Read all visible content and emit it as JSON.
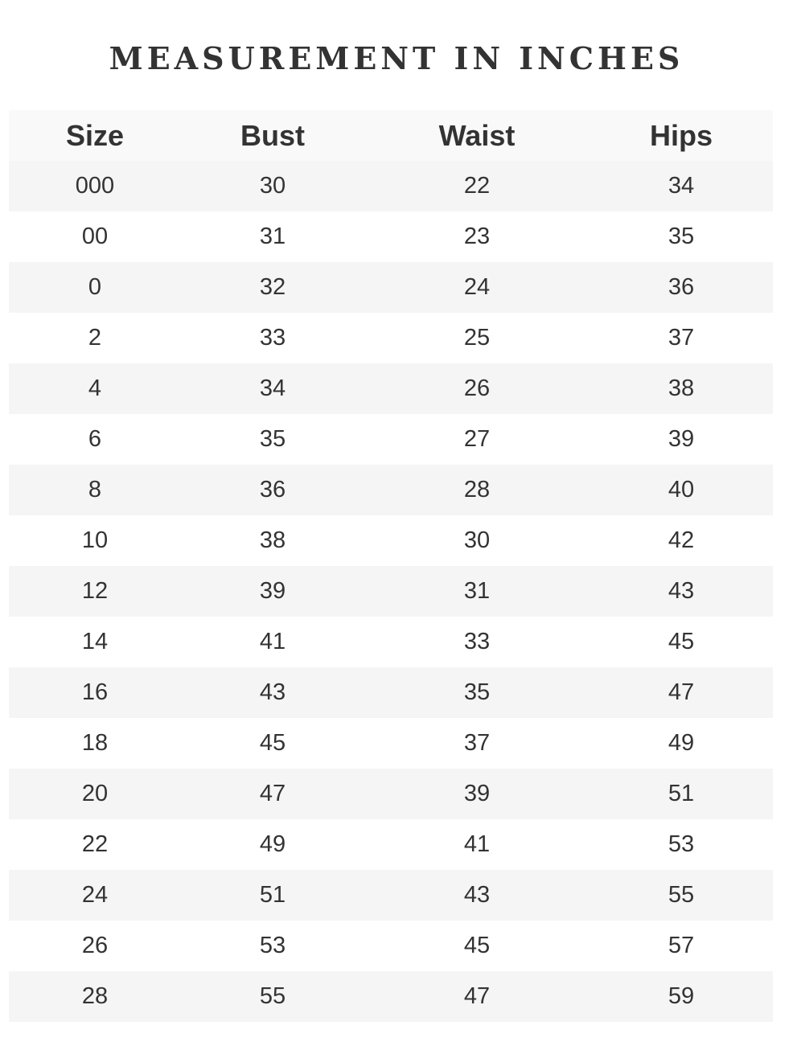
{
  "title": "MEASUREMENT IN INCHES",
  "table": {
    "headers": [
      "Size",
      "Bust",
      "Waist",
      "Hips"
    ],
    "rows": [
      [
        "000",
        "30",
        "22",
        "34"
      ],
      [
        "00",
        "31",
        "23",
        "35"
      ],
      [
        "0",
        "32",
        "24",
        "36"
      ],
      [
        "2",
        "33",
        "25",
        "37"
      ],
      [
        "4",
        "34",
        "26",
        "38"
      ],
      [
        "6",
        "35",
        "27",
        "39"
      ],
      [
        "8",
        "36",
        "28",
        "40"
      ],
      [
        "10",
        "38",
        "30",
        "42"
      ],
      [
        "12",
        "39",
        "31",
        "43"
      ],
      [
        "14",
        "41",
        "33",
        "45"
      ],
      [
        "16",
        "43",
        "35",
        "47"
      ],
      [
        "18",
        "45",
        "37",
        "49"
      ],
      [
        "20",
        "47",
        "39",
        "51"
      ],
      [
        "22",
        "49",
        "41",
        "53"
      ],
      [
        "24",
        "51",
        "43",
        "55"
      ],
      [
        "26",
        "53",
        "45",
        "57"
      ],
      [
        "28",
        "55",
        "47",
        "59"
      ]
    ]
  }
}
